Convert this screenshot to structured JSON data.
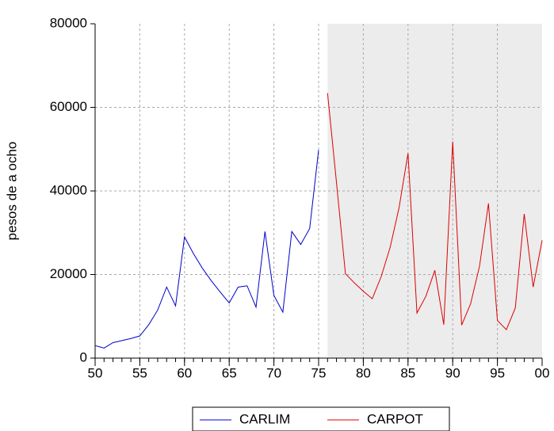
{
  "chart_data": {
    "type": "line",
    "ylabel": "pesos de a ocho",
    "series": [
      {
        "name": "CARLIM",
        "color": "#0000cc",
        "x": [
          50,
          51,
          52,
          53,
          54,
          55,
          56,
          57,
          58,
          59,
          60,
          61,
          62,
          63,
          64,
          65,
          66,
          67,
          68,
          69,
          70,
          71,
          72,
          73,
          74,
          75
        ],
        "values": [
          3000,
          2400,
          3700,
          4200,
          4700,
          5300,
          8000,
          11500,
          17000,
          12500,
          29000,
          25000,
          21500,
          18500,
          15800,
          13200,
          17000,
          17300,
          12200,
          30300,
          15000,
          11000,
          30300,
          27200,
          31000,
          49800
        ]
      },
      {
        "name": "CARPOT",
        "color": "#dd0000",
        "x": [
          76,
          77,
          78,
          79,
          80,
          81,
          82,
          83,
          84,
          85,
          86,
          87,
          88,
          89,
          90,
          91,
          92,
          93,
          94,
          95,
          96,
          97,
          98,
          99,
          100
        ],
        "values": [
          63400,
          42000,
          20200,
          18000,
          16000,
          14200,
          19500,
          26500,
          36000,
          49000,
          10800,
          14800,
          21000,
          8000,
          51800,
          7900,
          13000,
          22000,
          37000,
          9000,
          6800,
          12000,
          34500,
          17000,
          28200
        ]
      }
    ],
    "xlim": [
      50,
      100
    ],
    "xticks": [
      50,
      55,
      60,
      65,
      70,
      75,
      80,
      85,
      90,
      95,
      {
        "value": 100,
        "label": "00"
      }
    ],
    "ylim": [
      0,
      80000
    ],
    "yticks": [
      0,
      20000,
      40000,
      60000,
      80000
    ],
    "shaded_xrange": [
      76,
      100
    ],
    "grid": true,
    "legend": "bottom"
  }
}
